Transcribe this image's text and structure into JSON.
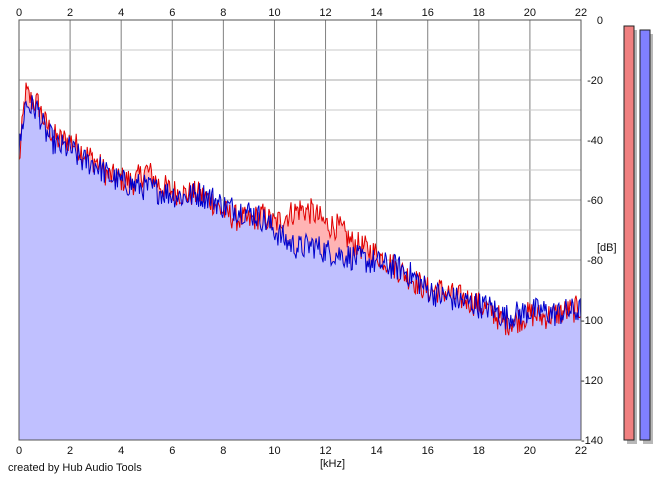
{
  "credit": "created by Hub Audio Tools",
  "colors": {
    "left_line": "#e00000",
    "left_fill": "#ffb4b4",
    "right_line": "#0000cc",
    "right_fill": "#c0c0ff",
    "left_meter": "#f08080",
    "right_meter": "#8080ff",
    "grid_major": "#808080",
    "grid_minor": "#c8c8c8"
  },
  "chart_data": {
    "type": "area",
    "title": "",
    "xlabel": "[kHz]",
    "ylabel": "[dB]",
    "xlim": [
      0,
      22
    ],
    "ylim": [
      -140,
      0
    ],
    "x_ticks": [
      "0",
      "2",
      "4",
      "6",
      "8",
      "10",
      "12",
      "14",
      "16",
      "18",
      "20",
      "22"
    ],
    "y_ticks": [
      "0",
      "-20",
      "-40",
      "-60",
      "-80",
      "-100",
      "-120",
      "-140"
    ],
    "grid": true,
    "legend": "none",
    "x": [
      0,
      0.25,
      0.5,
      0.75,
      1,
      1.5,
      2,
      2.5,
      3,
      3.5,
      4,
      4.5,
      5,
      5.5,
      6,
      6.5,
      7,
      7.5,
      8,
      8.5,
      9,
      9.5,
      10,
      10.5,
      11,
      11.5,
      12,
      12.5,
      13,
      13.5,
      14,
      14.5,
      15,
      15.5,
      16,
      16.5,
      17,
      17.5,
      18,
      18.5,
      19,
      19.5,
      20,
      20.5,
      21,
      21.5,
      22
    ],
    "series": [
      {
        "values": [
          -48,
          -24,
          -27,
          -28,
          -34,
          -40,
          -40,
          -44,
          -47,
          -52,
          -53,
          -54,
          -50,
          -55,
          -57,
          -58,
          -58,
          -60,
          -64,
          -66,
          -67,
          -65,
          -68,
          -65,
          -63,
          -64,
          -68,
          -69,
          -74,
          -76,
          -78,
          -81,
          -84,
          -87,
          -90,
          -90,
          -92,
          -93,
          -95,
          -97,
          -101,
          -100,
          -98,
          -99,
          -98,
          -97,
          -96
        ]
      },
      {
        "values": [
          -44,
          -28,
          -29,
          -30,
          -37,
          -42,
          -43,
          -47,
          -48,
          -52,
          -54,
          -55,
          -56,
          -57,
          -58,
          -59,
          -58,
          -59,
          -62,
          -63,
          -64,
          -66,
          -70,
          -74,
          -76,
          -75,
          -77,
          -78,
          -79,
          -80,
          -81,
          -82,
          -83,
          -86,
          -90,
          -92,
          -93,
          -94,
          -95,
          -96,
          -99,
          -98,
          -97,
          -97,
          -98,
          -97,
          -97
        ]
      }
    ]
  },
  "meters": {
    "left_level_db": 0,
    "right_level_db": 0
  }
}
